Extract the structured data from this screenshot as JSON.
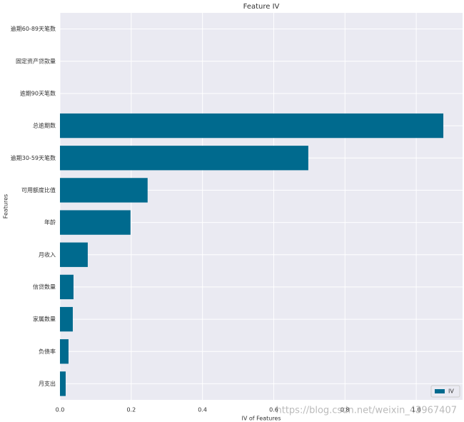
{
  "chart_data": {
    "type": "barh",
    "title": "Feature IV",
    "xlabel": "IV of Features",
    "ylabel": "Features",
    "categories": [
      "逾期60-89天笔数",
      "固定资产贷款量",
      "逾期90天笔数",
      "总逾期数",
      "逾期30-59天笔数",
      "可用额度比值",
      "年龄",
      "月收入",
      "信贷数量",
      "家属数量",
      "负债率",
      "月支出"
    ],
    "series": [
      {
        "name": "IV",
        "color": "#006a8e",
        "values": [
          0,
          0,
          0,
          1.076,
          0.697,
          0.246,
          0.198,
          0.078,
          0.038,
          0.036,
          0.024,
          0.016
        ]
      }
    ],
    "xlim": [
      0,
      1.13
    ],
    "xticks": [
      {
        "value": 0,
        "label": "0.0"
      },
      0.2,
      0.4,
      0.6,
      0.8,
      {
        "value": 1,
        "label": "1.0"
      }
    ],
    "grid": true,
    "legend": "lower right",
    "annotations": [
      "https://blog.csdn.net/weixin_43967407"
    ]
  }
}
